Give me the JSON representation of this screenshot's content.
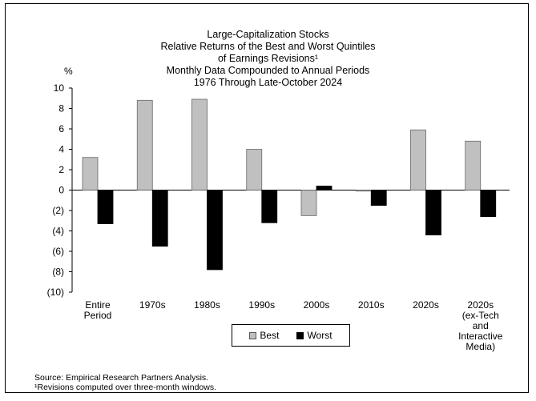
{
  "title_lines": [
    "Large-Capitalization Stocks",
    "Relative Returns of the Best and Worst Quintiles",
    "of Earnings Revisions¹",
    "Monthly Data Compounded to Annual Periods",
    "1976 Through Late-October 2024"
  ],
  "footnotes": [
    "Source: Empirical Research Partners Analysis.",
    "¹Revisions computed over three-month windows."
  ],
  "chart_data": {
    "type": "bar",
    "ylabel": "%",
    "ylim": [
      -10,
      10
    ],
    "yticks": [
      10,
      8,
      6,
      4,
      2,
      0,
      -2,
      -4,
      -6,
      -8,
      -10
    ],
    "ytick_labels": [
      "10",
      "8",
      "6",
      "4",
      "2",
      "0",
      "(2)",
      "(4)",
      "(6)",
      "(8)",
      "(10)"
    ],
    "categories": [
      [
        "Entire",
        "Period"
      ],
      [
        "1970s"
      ],
      [
        "1980s"
      ],
      [
        "1990s"
      ],
      [
        "2000s"
      ],
      [
        "2010s"
      ],
      [
        "2020s"
      ],
      [
        "2020s",
        "(ex-Tech",
        "and",
        "Interactive",
        "Media)"
      ]
    ],
    "series": [
      {
        "name": "Best",
        "color": "#c0c0c0",
        "values": [
          3.2,
          8.8,
          8.9,
          4.0,
          -2.5,
          -0.1,
          5.9,
          4.8
        ]
      },
      {
        "name": "Worst",
        "color": "#000000",
        "values": [
          -3.3,
          -5.5,
          -7.8,
          -3.2,
          0.4,
          -1.5,
          -4.4,
          -2.6
        ]
      }
    ],
    "legend_position": "bottom-center",
    "grid": false
  }
}
